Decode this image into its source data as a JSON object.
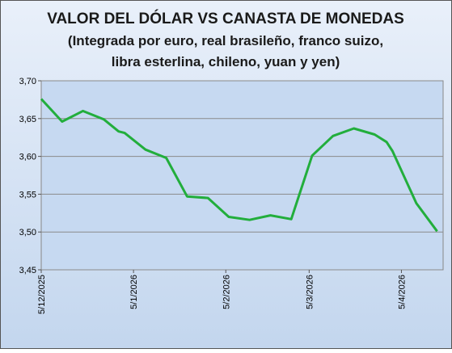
{
  "chart_data": {
    "type": "line",
    "title": "VALOR DEL DÓLAR VS CANASTA DE MONEDAS",
    "subtitle": [
      "(Integrada por euro, real brasileño, franco suizo,",
      "libra esterlina,  chileno, yuan  y yen)"
    ],
    "x": [
      "2025-12-05",
      "2025-12-12",
      "2025-12-19",
      "2025-12-26",
      "2025-12-31",
      "2026-01-02",
      "2026-01-09",
      "2026-01-16",
      "2026-01-23",
      "2026-01-30",
      "2026-02-06",
      "2026-02-13",
      "2026-02-20",
      "2026-02-27",
      "2026-03-06",
      "2026-03-13",
      "2026-03-20",
      "2026-03-27",
      "2026-03-31",
      "2026-04-02",
      "2026-04-10",
      "2026-04-17"
    ],
    "series": [
      {
        "color": "#22ae3c",
        "values": [
          3.676,
          3.646,
          3.66,
          3.649,
          3.633,
          3.631,
          3.609,
          3.598,
          3.547,
          3.545,
          3.52,
          3.516,
          3.522,
          3.517,
          3.601,
          3.627,
          3.637,
          3.629,
          3.619,
          3.607,
          3.538,
          3.501
        ]
      }
    ],
    "xlim": [
      "2025-12-05",
      "2026-04-19"
    ],
    "xticks": [
      {
        "value": "2025-12-05",
        "label": "5/12/2025"
      },
      {
        "value": "2026-01-05",
        "label": "5/1/2026"
      },
      {
        "value": "2026-02-05",
        "label": "5/2/2026"
      },
      {
        "value": "2026-03-05",
        "label": "5/3/2026"
      },
      {
        "value": "2026-04-05",
        "label": "5/4/2026"
      }
    ],
    "ylim": [
      3.45,
      3.7
    ],
    "yticks": [
      {
        "value": 3.45,
        "label": "3,45"
      },
      {
        "value": 3.5,
        "label": "3,50"
      },
      {
        "value": 3.55,
        "label": "3,55"
      },
      {
        "value": 3.6,
        "label": "3,60"
      },
      {
        "value": 3.65,
        "label": "3,65"
      },
      {
        "value": 3.7,
        "label": "3,70"
      }
    ],
    "grid": true
  }
}
